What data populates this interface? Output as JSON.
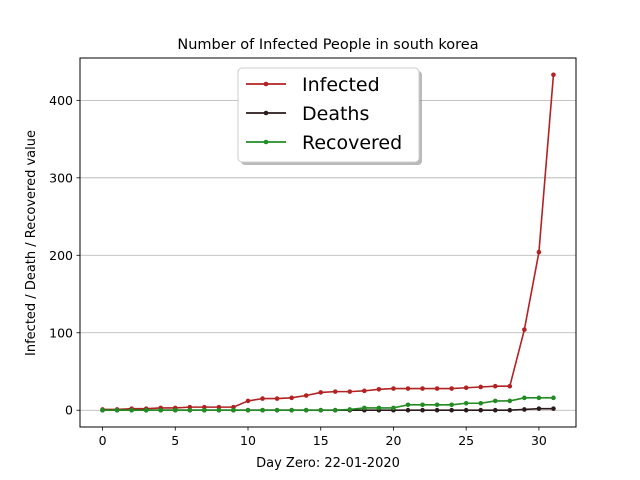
{
  "chart_data": {
    "type": "line",
    "title": "Number of Infected People in south korea",
    "xlabel": "Day Zero: 22-01-2020",
    "ylabel": "Infected / Death / Recovered value",
    "xlim": [
      -1.55,
      32.55
    ],
    "ylim": [
      -21.65,
      454.65
    ],
    "xticks": [
      0,
      5,
      10,
      15,
      20,
      25,
      30
    ],
    "yticks": [
      0,
      100,
      200,
      300,
      400
    ],
    "grid": "horizontal",
    "legend_position": "top-center",
    "x": [
      0,
      1,
      2,
      3,
      4,
      5,
      6,
      7,
      8,
      9,
      10,
      11,
      12,
      13,
      14,
      15,
      16,
      17,
      18,
      19,
      20,
      21,
      22,
      23,
      24,
      25,
      26,
      27,
      28,
      29,
      30,
      31
    ],
    "series": [
      {
        "name": "Infected",
        "color": "#b22222",
        "values": [
          1,
          1,
          2,
          2,
          3,
          3,
          4,
          4,
          4,
          4,
          12,
          15,
          15,
          16,
          19,
          23,
          24,
          24,
          25,
          27,
          28,
          28,
          28,
          28,
          28,
          29,
          30,
          31,
          31,
          104,
          204,
          433
        ]
      },
      {
        "name": "Deaths",
        "color": "#2a1a1a",
        "values": [
          0,
          0,
          0,
          0,
          0,
          0,
          0,
          0,
          0,
          0,
          0,
          0,
          0,
          0,
          0,
          0,
          0,
          0,
          0,
          0,
          0,
          0,
          0,
          0,
          0,
          0,
          0,
          0,
          0,
          1,
          2,
          2
        ]
      },
      {
        "name": "Recovered",
        "color": "#228b22",
        "values": [
          0,
          0,
          0,
          0,
          0,
          0,
          0,
          0,
          0,
          0,
          0,
          0,
          0,
          0,
          0,
          0,
          0,
          1,
          3,
          3,
          3,
          7,
          7,
          7,
          7,
          9,
          9,
          12,
          12,
          16,
          16,
          16
        ]
      }
    ]
  }
}
